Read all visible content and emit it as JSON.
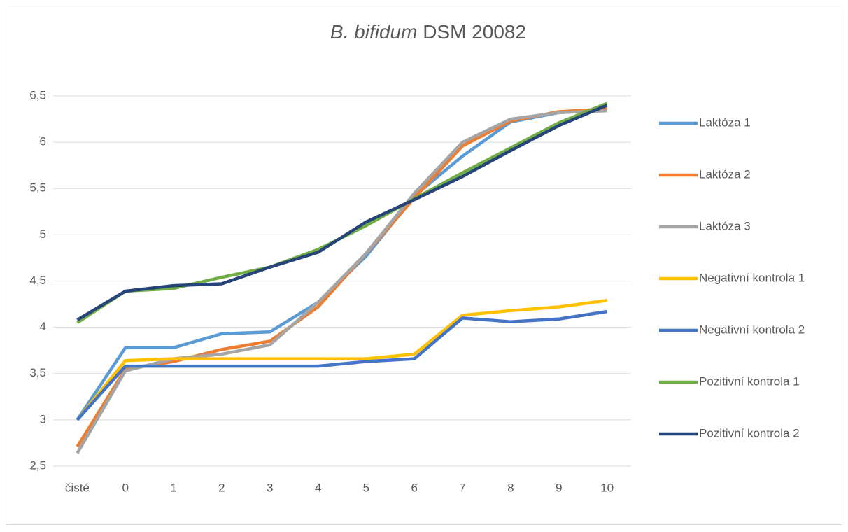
{
  "chart_data": {
    "type": "line",
    "title": {
      "parts": [
        "B. bifidum",
        "DSM 20082"
      ]
    },
    "categories": [
      "čisté",
      "0",
      "1",
      "2",
      "3",
      "4",
      "5",
      "6",
      "7",
      "8",
      "9",
      "10"
    ],
    "series": [
      {
        "name": "Laktóza 1",
        "color": "#5b9bd5",
        "values": [
          3.0,
          3.78,
          3.78,
          3.93,
          3.95,
          4.27,
          4.77,
          5.42,
          5.85,
          6.22,
          6.32,
          6.36
        ]
      },
      {
        "name": "Laktóza 2",
        "color": "#ed7d31",
        "values": [
          2.71,
          3.55,
          3.63,
          3.76,
          3.85,
          4.22,
          4.8,
          5.4,
          5.96,
          6.23,
          6.33,
          6.36
        ]
      },
      {
        "name": "Laktóza 3",
        "color": "#a5a5a5",
        "values": [
          2.64,
          3.53,
          3.66,
          3.71,
          3.81,
          4.27,
          4.8,
          5.45,
          6.0,
          6.25,
          6.32,
          6.34
        ]
      },
      {
        "name": "Negativní kontrola 1",
        "color": "#ffc000",
        "values": [
          3.0,
          3.64,
          3.66,
          3.66,
          3.66,
          3.66,
          3.66,
          3.71,
          4.13,
          4.18,
          4.22,
          4.29
        ]
      },
      {
        "name": "Negativní kontrola 2",
        "color": "#4472c4",
        "values": [
          3.0,
          3.58,
          3.58,
          3.58,
          3.58,
          3.58,
          3.63,
          3.66,
          4.1,
          4.06,
          4.09,
          4.17
        ]
      },
      {
        "name": "Pozitivní kontrola 1",
        "color": "#70ad47",
        "values": [
          4.05,
          4.39,
          4.42,
          4.54,
          4.65,
          4.84,
          5.1,
          5.39,
          5.67,
          5.94,
          6.21,
          6.42
        ]
      },
      {
        "name": "Pozitivní kontrola 2",
        "color": "#264478",
        "values": [
          4.08,
          4.39,
          4.45,
          4.47,
          4.65,
          4.81,
          5.14,
          5.38,
          5.63,
          5.91,
          6.18,
          6.4
        ]
      }
    ],
    "ylim": [
      2.5,
      6.5
    ],
    "yticks": [
      {
        "value": 2.5,
        "label": "2,5"
      },
      3,
      {
        "value": 3.5,
        "label": "3,5"
      },
      4,
      {
        "value": 4.5,
        "label": "4,5"
      },
      5,
      {
        "value": 5.5,
        "label": "5,5"
      },
      6,
      {
        "value": 6.5,
        "label": "6,5"
      }
    ],
    "grid": true,
    "legend": "right"
  }
}
